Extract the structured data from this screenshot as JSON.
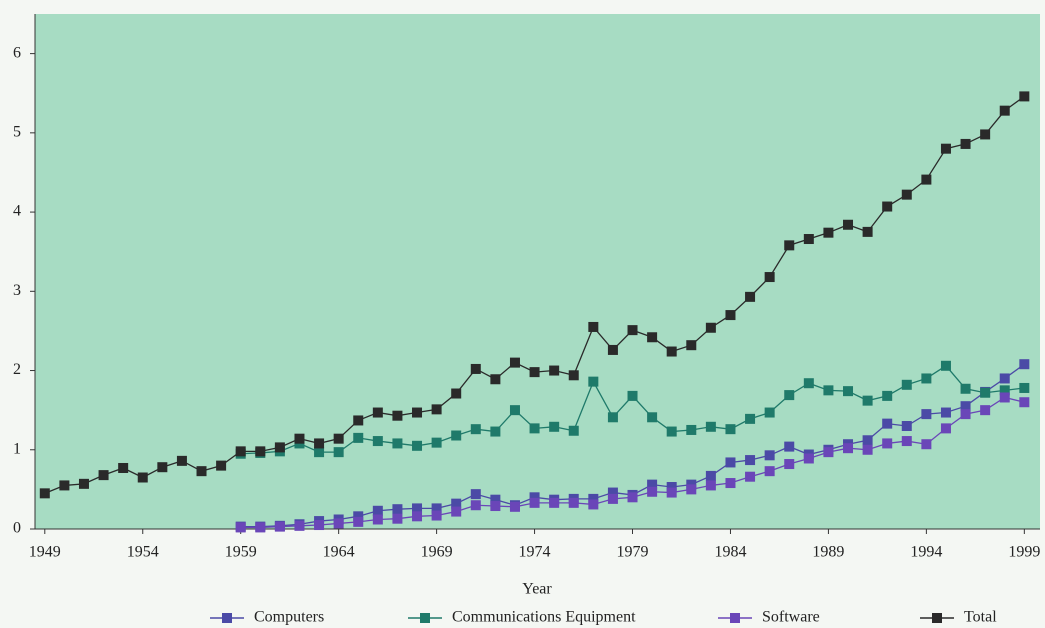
{
  "chart_data": {
    "type": "line",
    "xlabel": "Year",
    "x": [
      1949,
      1950,
      1951,
      1952,
      1953,
      1954,
      1955,
      1956,
      1957,
      1958,
      1959,
      1960,
      1961,
      1962,
      1963,
      1964,
      1965,
      1966,
      1967,
      1968,
      1969,
      1970,
      1971,
      1972,
      1973,
      1974,
      1975,
      1976,
      1977,
      1978,
      1979,
      1980,
      1981,
      1982,
      1983,
      1984,
      1985,
      1986,
      1987,
      1988,
      1989,
      1990,
      1991,
      1992,
      1993,
      1994,
      1995,
      1996,
      1997,
      1998,
      1999
    ],
    "series": [
      {
        "name": "Computers",
        "color": "#4b4aa6",
        "values": [
          null,
          null,
          null,
          null,
          null,
          null,
          null,
          null,
          null,
          null,
          0.03,
          0.03,
          0.04,
          0.06,
          0.1,
          0.12,
          0.16,
          0.23,
          0.25,
          0.26,
          0.26,
          0.32,
          0.44,
          0.37,
          0.3,
          0.4,
          0.37,
          0.38,
          0.38,
          0.46,
          0.43,
          0.56,
          0.53,
          0.56,
          0.67,
          0.84,
          0.87,
          0.93,
          1.04,
          0.94,
          1.0,
          1.07,
          1.12,
          1.33,
          1.3,
          1.45,
          1.47,
          1.55,
          1.73,
          1.9,
          2.08
        ]
      },
      {
        "name": "Communications Equipment",
        "color": "#1f7a6a",
        "values": [
          null,
          null,
          null,
          null,
          null,
          null,
          null,
          null,
          null,
          null,
          0.95,
          0.96,
          0.98,
          1.08,
          0.97,
          0.97,
          1.15,
          1.11,
          1.08,
          1.05,
          1.09,
          1.18,
          1.26,
          1.23,
          1.5,
          1.27,
          1.29,
          1.24,
          1.86,
          1.41,
          1.68,
          1.41,
          1.23,
          1.25,
          1.29,
          1.26,
          1.39,
          1.47,
          1.69,
          1.84,
          1.75,
          1.74,
          1.62,
          1.68,
          1.82,
          1.9,
          2.06,
          1.77,
          1.72,
          1.75,
          1.78
        ]
      },
      {
        "name": "Software",
        "color": "#6a46b8",
        "values": [
          null,
          null,
          null,
          null,
          null,
          null,
          null,
          null,
          null,
          null,
          0.02,
          0.02,
          0.03,
          0.04,
          0.05,
          0.07,
          0.09,
          0.12,
          0.13,
          0.16,
          0.17,
          0.22,
          0.3,
          0.29,
          0.28,
          0.33,
          0.33,
          0.33,
          0.31,
          0.38,
          0.4,
          0.47,
          0.46,
          0.5,
          0.55,
          0.58,
          0.66,
          0.73,
          0.82,
          0.89,
          0.97,
          1.02,
          1.0,
          1.08,
          1.11,
          1.07,
          1.27,
          1.45,
          1.5,
          1.66,
          1.6
        ]
      },
      {
        "name": "Total",
        "color": "#2a2a2a",
        "values": [
          0.45,
          0.55,
          0.57,
          0.68,
          0.77,
          0.65,
          0.78,
          0.86,
          0.73,
          0.8,
          0.98,
          0.98,
          1.03,
          1.14,
          1.08,
          1.14,
          1.37,
          1.47,
          1.43,
          1.47,
          1.51,
          1.71,
          2.02,
          1.89,
          2.1,
          1.98,
          2.0,
          1.94,
          2.55,
          2.26,
          2.51,
          2.42,
          2.24,
          2.32,
          2.54,
          2.7,
          2.93,
          3.18,
          3.58,
          3.66,
          3.74,
          3.84,
          3.75,
          4.07,
          4.22,
          4.41,
          4.8,
          4.86,
          4.98,
          5.28,
          5.46
        ]
      }
    ],
    "xlim": [
      1948.5,
      1999.8
    ],
    "xticks": [
      1949,
      1954,
      1959,
      1964,
      1969,
      1974,
      1979,
      1984,
      1989,
      1994,
      1999
    ],
    "ylim": [
      0,
      6.5
    ],
    "yticks": [
      0,
      1,
      2,
      3,
      4,
      5,
      6
    ],
    "legend": "bottom"
  }
}
